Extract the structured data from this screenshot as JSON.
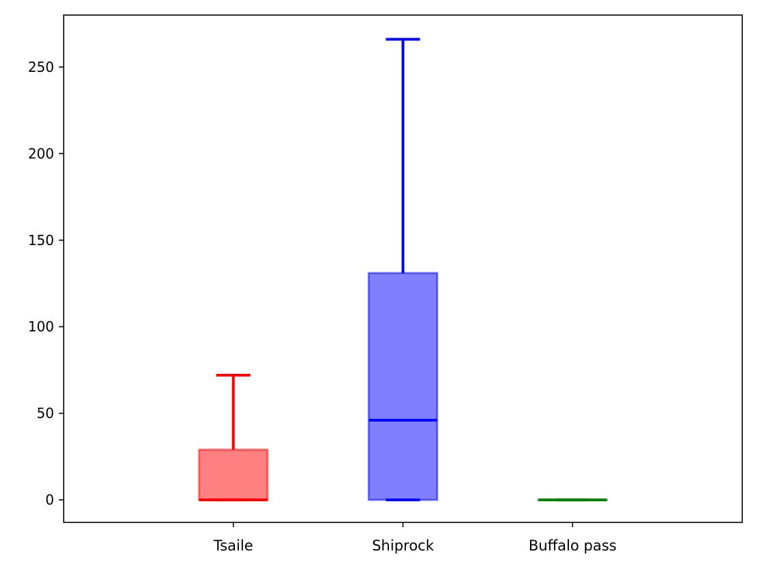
{
  "chart_data": {
    "type": "box",
    "title": "",
    "xlabel": "",
    "ylabel": "",
    "categories": [
      "Tsaile",
      "Shiprock",
      "Buffalo pass"
    ],
    "ylim": [
      -13,
      280
    ],
    "yticks": [
      0,
      50,
      100,
      150,
      200,
      250
    ],
    "ytick_labels": [
      "0",
      "50",
      "100",
      "150",
      "200",
      "250"
    ],
    "grid": false,
    "boxes": [
      {
        "name": "Tsaile",
        "whisker_low": 0,
        "q1": 0,
        "median": 0,
        "q3": 29,
        "whisker_high": 72,
        "color": "#ff0000",
        "fill": "#ff8080"
      },
      {
        "name": "Shiprock",
        "whisker_low": 0,
        "q1": 0,
        "median": 46,
        "q3": 131,
        "whisker_high": 266,
        "color": "#0000ff",
        "fill": "#8080ff"
      },
      {
        "name": "Buffalo pass",
        "whisker_low": 0,
        "q1": 0,
        "median": 0,
        "q3": 0,
        "whisker_high": 0,
        "color": "#008000",
        "fill": "#80c080"
      }
    ]
  }
}
